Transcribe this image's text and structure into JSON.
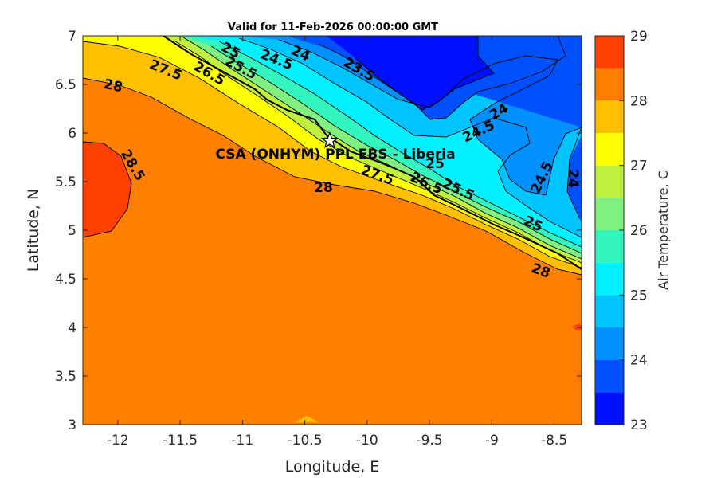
{
  "title": "Valid for 11-Feb-2026 00:00:00 GMT",
  "axes": {
    "xlabel": "Longitude, E",
    "ylabel": "Latitude, N",
    "xlim": [
      -12.28,
      -8.28
    ],
    "ylim": [
      3,
      7
    ],
    "xticks": [
      "-12",
      "-11.5",
      "-11",
      "-10.5",
      "-10",
      "-9.5",
      "-9",
      "-8.5"
    ],
    "yticks": [
      "3",
      "3.5",
      "4",
      "4.5",
      "5",
      "5.5",
      "6",
      "6.5",
      "7"
    ]
  },
  "colorbar": {
    "label": "Air Temperature, C",
    "ticks": [
      "23",
      "24",
      "25",
      "26",
      "27",
      "28",
      "29"
    ],
    "levels": [
      23,
      23.5,
      24,
      24.5,
      25,
      25.5,
      26,
      26.5,
      27,
      27.5,
      28,
      28.5,
      29
    ],
    "colors": [
      "#0010ff",
      "#0050ff",
      "#0090ff",
      "#00c4ff",
      "#00f0ff",
      "#33f5c0",
      "#80f080",
      "#c0f040",
      "#ffff00",
      "#ffc000",
      "#ff8000",
      "#ff4000"
    ]
  },
  "site": {
    "label": "CSA (ONHYM) PPL EBS  - Liberia",
    "lon": -10.3,
    "lat": 5.92
  },
  "contour_labels": [
    {
      "text": "25"
    },
    {
      "text": "24.5"
    },
    {
      "text": "24"
    },
    {
      "text": "23.5"
    },
    {
      "text": "27.5"
    },
    {
      "text": "28"
    },
    {
      "text": "28.5"
    },
    {
      "text": "24"
    },
    {
      "text": "24.5"
    },
    {
      "text": "25"
    },
    {
      "text": "27.5"
    },
    {
      "text": "28"
    },
    {
      "text": "24.5"
    },
    {
      "text": "24"
    },
    {
      "text": "25"
    },
    {
      "text": "28"
    },
    {
      "text": "25.5"
    },
    {
      "text": "26.5"
    },
    {
      "text": "25.5"
    },
    {
      "text": "26.5"
    }
  ],
  "chart_data": {
    "type": "heatmap",
    "title": "Valid for 11-Feb-2026 00:00:00 GMT",
    "xlabel": "Longitude, E",
    "ylabel": "Latitude, N",
    "xlim": [
      -12.28,
      -8.28
    ],
    "ylim": [
      3,
      7
    ],
    "colorbar_range": [
      23,
      29
    ],
    "variable": "Air Temperature, C"
  }
}
